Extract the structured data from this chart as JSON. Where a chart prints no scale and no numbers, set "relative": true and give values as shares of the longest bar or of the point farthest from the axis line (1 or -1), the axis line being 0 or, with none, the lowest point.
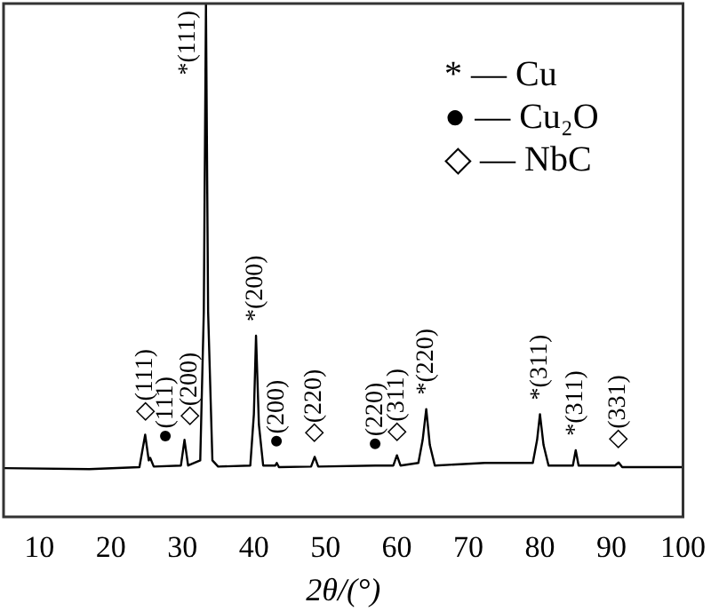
{
  "chart_data": {
    "type": "line",
    "relative": true,
    "xlabel": "2θ/(°)",
    "xlim": [
      5,
      100
    ],
    "xticks": [
      10,
      20,
      30,
      40,
      50,
      60,
      70,
      80,
      90,
      100
    ],
    "tick_labels": "x",
    "grid": false,
    "legend": false,
    "marker": "none",
    "line_style": "solid",
    "series": [
      {
        "color": "#000000",
        "x": [
          5,
          17,
          24,
          24.8,
          25.3,
          25.5,
          26,
          29.8,
          30.3,
          30.8,
          32.5,
          33.0,
          33.3,
          33.6,
          34.2,
          35,
          39.5,
          40.0,
          40.3,
          40.7,
          41.3,
          43.0,
          43.2,
          43.5,
          48,
          48.5,
          49,
          57,
          59.5,
          60,
          60.5,
          63,
          63.6,
          64.1,
          64.6,
          65.3,
          72.3,
          79,
          79.6,
          80,
          80.5,
          81.2,
          84.6,
          85,
          85.4,
          90.5,
          91,
          91.5,
          100
        ],
        "values": [
          0.095,
          0.093,
          0.097,
          0.16,
          0.11,
          0.115,
          0.098,
          0.1,
          0.15,
          0.1,
          0.11,
          0.4,
          1,
          0.4,
          0.11,
          0.098,
          0.1,
          0.2,
          0.353,
          0.18,
          0.1,
          0.1,
          0.105,
          0.097,
          0.098,
          0.117,
          0.098,
          0.1,
          0.1,
          0.12,
          0.1,
          0.105,
          0.15,
          0.21,
          0.14,
          0.1,
          0.105,
          0.105,
          0.15,
          0.2,
          0.14,
          0.1,
          0.1,
          0.13,
          0.1,
          0.1,
          0.106,
          0.097,
          0.097
        ]
      }
    ],
    "annotations": [
      {
        "text": "◇(111)",
        "x": 24.8,
        "y": 0.16
      },
      {
        "text": "●(111)",
        "x": 25.5,
        "y": 0.115
      },
      {
        "text": "◇(200)",
        "x": 30.3,
        "y": 0.15
      },
      {
        "text": "*(111)",
        "x": 33.3,
        "y": 1
      },
      {
        "text": "*(200)",
        "x": 40.3,
        "y": 0.353
      },
      {
        "text": "●(200)",
        "x": 43.2,
        "y": 0.105
      },
      {
        "text": "◇(220)",
        "x": 48.5,
        "y": 0.117
      },
      {
        "text": "●(220)",
        "x": 57,
        "y": 0.1
      },
      {
        "text": "◇(311)",
        "x": 60,
        "y": 0.12
      },
      {
        "text": "*(220)",
        "x": 64.1,
        "y": 0.21
      },
      {
        "text": "*(311)",
        "x": 80,
        "y": 0.2
      },
      {
        "text": "*(311)",
        "x": 85,
        "y": 0.13
      },
      {
        "text": "◇(331)",
        "x": 91,
        "y": 0.106
      },
      "* — Cu",
      "● — Cu₂O",
      "◇ — NbC"
    ]
  }
}
